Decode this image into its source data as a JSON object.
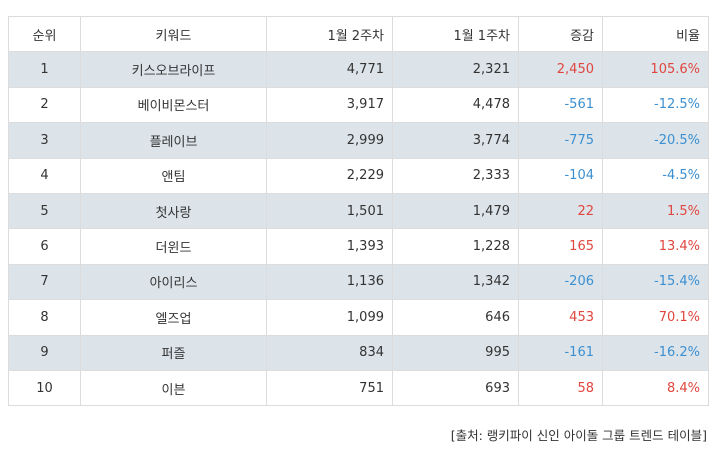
{
  "table": {
    "headers": [
      "순위",
      "키워드",
      "1월 2주차",
      "1월 1주차",
      "증감",
      "비율"
    ],
    "rows": [
      {
        "rank": "1",
        "keyword": "키스오브라이프",
        "week2": "4,771",
        "week1": "2,321",
        "change": "2,450",
        "rate": "105.6%",
        "dir": "pos"
      },
      {
        "rank": "2",
        "keyword": "베이비몬스터",
        "week2": "3,917",
        "week1": "4,478",
        "change": "-561",
        "rate": "-12.5%",
        "dir": "neg"
      },
      {
        "rank": "3",
        "keyword": "플레이브",
        "week2": "2,999",
        "week1": "3,774",
        "change": "-775",
        "rate": "-20.5%",
        "dir": "neg"
      },
      {
        "rank": "4",
        "keyword": "앤팀",
        "week2": "2,229",
        "week1": "2,333",
        "change": "-104",
        "rate": "-4.5%",
        "dir": "neg"
      },
      {
        "rank": "5",
        "keyword": "첫사랑",
        "week2": "1,501",
        "week1": "1,479",
        "change": "22",
        "rate": "1.5%",
        "dir": "pos"
      },
      {
        "rank": "6",
        "keyword": "더윈드",
        "week2": "1,393",
        "week1": "1,228",
        "change": "165",
        "rate": "13.4%",
        "dir": "pos"
      },
      {
        "rank": "7",
        "keyword": "아이리스",
        "week2": "1,136",
        "week1": "1,342",
        "change": "-206",
        "rate": "-15.4%",
        "dir": "neg"
      },
      {
        "rank": "8",
        "keyword": "엘즈업",
        "week2": "1,099",
        "week1": "646",
        "change": "453",
        "rate": "70.1%",
        "dir": "pos"
      },
      {
        "rank": "9",
        "keyword": "퍼즐",
        "week2": "834",
        "week1": "995",
        "change": "-161",
        "rate": "-16.2%",
        "dir": "neg"
      },
      {
        "rank": "10",
        "keyword": "이븐",
        "week2": "751",
        "week1": "693",
        "change": "58",
        "rate": "8.4%",
        "dir": "pos"
      }
    ]
  },
  "source": "[출처: 랭키파이 신인 아이돌 그룹 트렌드 테이블]",
  "colors": {
    "increase": "#e0463f",
    "decrease": "#3c8fd0",
    "shaded_row": "#dce4ea",
    "border": "#dcdcdc"
  }
}
